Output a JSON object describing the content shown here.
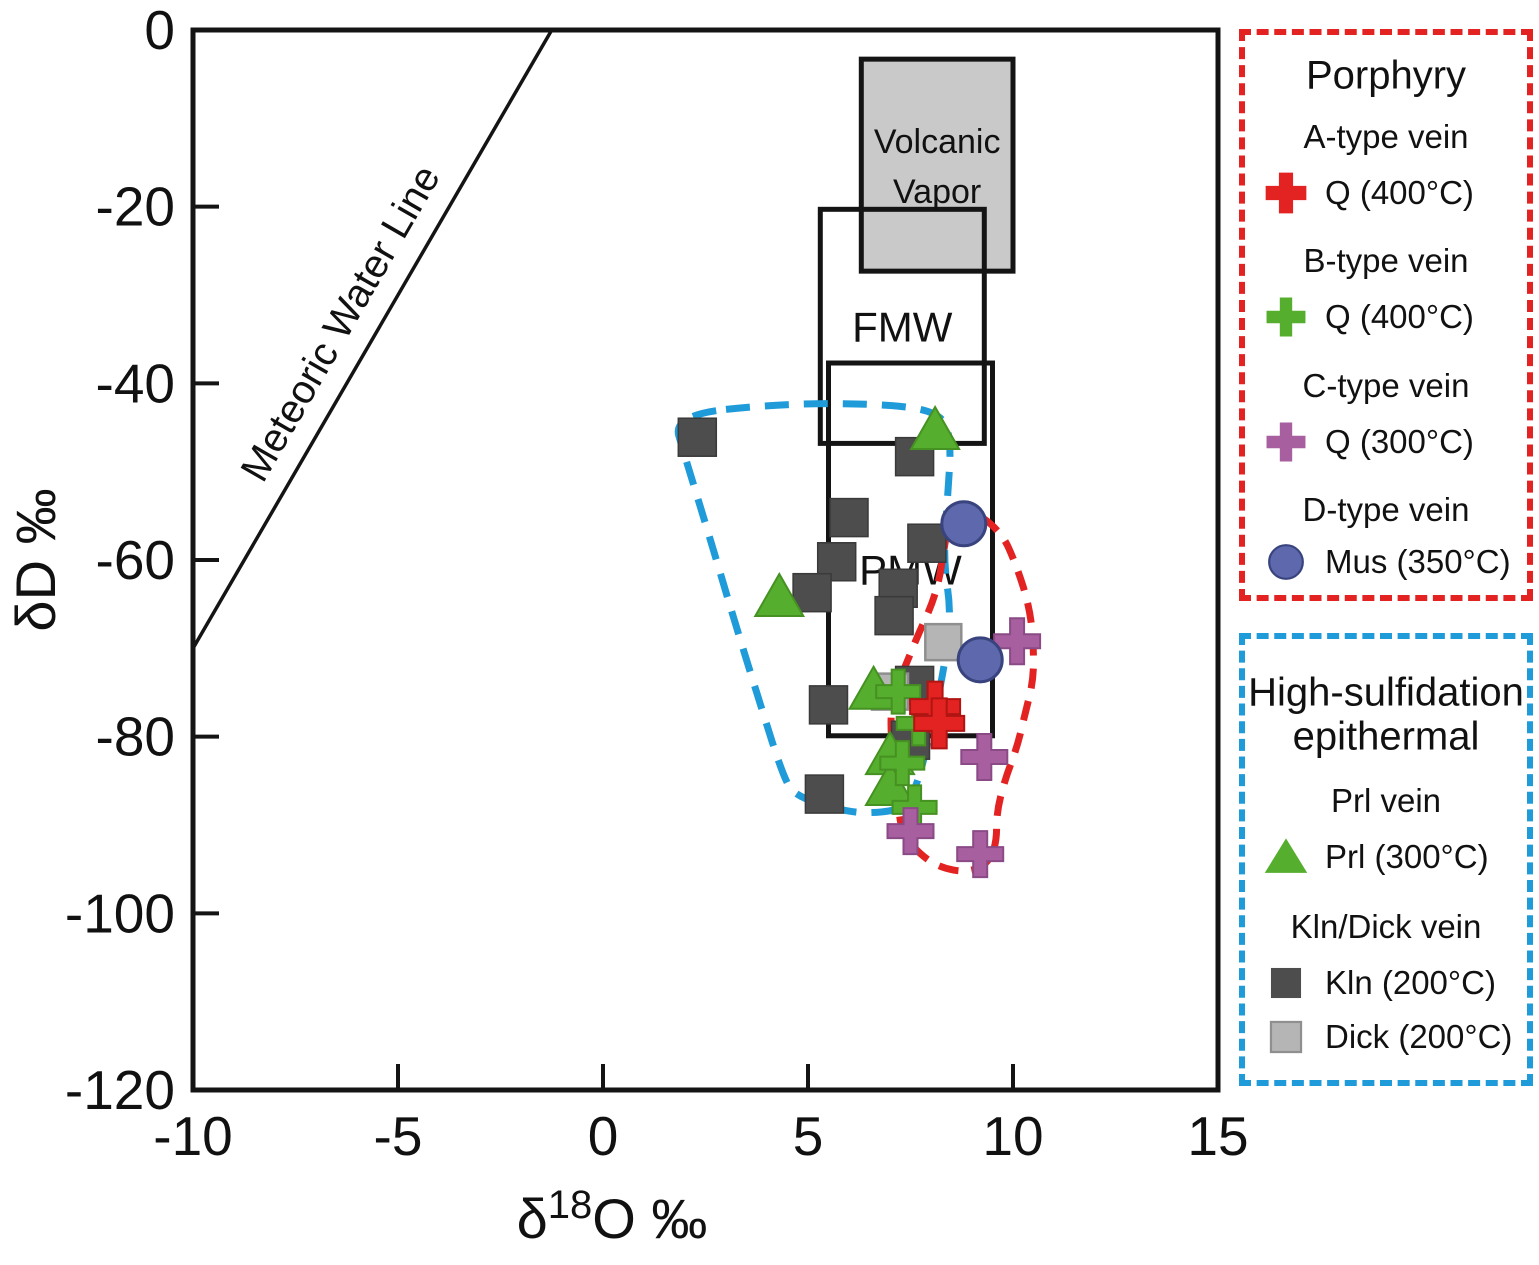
{
  "colors": {
    "red": "#e32322",
    "green": "#56ae2e",
    "purple": "#a75f9f",
    "blue": "#5e69ad",
    "blue_stroke": "#39447f",
    "kln": "#4d4d4d",
    "kln_stroke": "#3a3a3a",
    "dick": "#b5b5b5",
    "dick_stroke": "#8f8f8f",
    "green_stroke": "#459122",
    "red_stroke": "#b01512",
    "purple_stroke": "#8a4a85",
    "volcanic_fill": "#c9c9c9",
    "box_stroke": "#141414",
    "hs_field": "#1e9bd8",
    "porphyry_field": "#e32322",
    "axis": "#141414"
  },
  "axes": {
    "x_title_delta": "δ",
    "x_title_sup": "18",
    "x_title_rest": "O ‰",
    "y_title": "δD ‰",
    "x_ticks": [
      -10,
      -5,
      0,
      5,
      10,
      15
    ],
    "y_ticks": [
      0,
      -20,
      -40,
      -60,
      -80,
      -100,
      -120
    ]
  },
  "chart_data": {
    "type": "scatter",
    "xlabel": "δ18O ‰",
    "ylabel": "δD ‰",
    "xlim": [
      -10,
      15
    ],
    "ylim": [
      -120,
      0
    ],
    "x_ticks": [
      -10,
      -5,
      0,
      5,
      10,
      15
    ],
    "y_ticks": [
      0,
      -20,
      -40,
      -60,
      -80,
      -100,
      -120
    ],
    "grid": false,
    "meteoric_water_line": {
      "label": "Meteoric Water Line",
      "points": [
        [
          -10,
          -70
        ],
        [
          -1.25,
          0
        ]
      ]
    },
    "regions": [
      {
        "id": "volcanic_vapor",
        "label_line1": "Volcanic",
        "label_line2": "Vapor",
        "x": [
          6.3,
          10.0
        ],
        "y": [
          -3.3,
          -27.3
        ],
        "filled": true
      },
      {
        "id": "fmw",
        "label": "FMW",
        "x": [
          5.3,
          9.3
        ],
        "y": [
          -20.3,
          -46.8
        ],
        "filled": false
      },
      {
        "id": "pmw",
        "label": "PMW",
        "x": [
          5.5,
          9.5
        ],
        "y": [
          -37.7,
          -79.9
        ],
        "filled": false
      }
    ],
    "fields": [
      {
        "id": "high_sulfidation_field",
        "name": "High-sulfidation epithermal",
        "style": "dashed",
        "outline": [
          [
            1.7,
            -43.6
          ],
          [
            4.3,
            -42.3
          ],
          [
            6.8,
            -42.3
          ],
          [
            8.2,
            -43.2
          ],
          [
            8.5,
            -46.1
          ],
          [
            8.4,
            -53.2
          ],
          [
            8.3,
            -60.0
          ],
          [
            8.5,
            -66.2
          ],
          [
            8.3,
            -72.8
          ],
          [
            8.0,
            -79.2
          ],
          [
            7.7,
            -84.9
          ],
          [
            7.4,
            -88.0
          ],
          [
            6.8,
            -88.6
          ],
          [
            6.0,
            -88.6
          ],
          [
            4.7,
            -86.8
          ],
          [
            4.4,
            -84.6
          ],
          [
            3.8,
            -75.8
          ],
          [
            3.2,
            -66.8
          ],
          [
            2.6,
            -57.4
          ],
          [
            2.0,
            -48.3
          ]
        ]
      },
      {
        "id": "porphyry_field",
        "name": "Porphyry",
        "style": "dashed",
        "outline": [
          [
            8.8,
            -53.8
          ],
          [
            9.7,
            -56.6
          ],
          [
            10.1,
            -60.8
          ],
          [
            10.4,
            -65.3
          ],
          [
            10.5,
            -69.4
          ],
          [
            10.5,
            -73.6
          ],
          [
            10.3,
            -77.3
          ],
          [
            10.1,
            -81.2
          ],
          [
            9.8,
            -84.9
          ],
          [
            9.6,
            -88.6
          ],
          [
            9.6,
            -92.0
          ],
          [
            9.4,
            -94.3
          ],
          [
            8.9,
            -95.4
          ],
          [
            8.2,
            -94.8
          ],
          [
            7.7,
            -93.2
          ],
          [
            7.3,
            -90.9
          ],
          [
            7.2,
            -88.0
          ],
          [
            7.1,
            -84.1
          ],
          [
            7.0,
            -78.1
          ],
          [
            7.1,
            -75.1
          ],
          [
            7.4,
            -71.7
          ],
          [
            7.7,
            -68.3
          ],
          [
            8.0,
            -65.3
          ],
          [
            8.2,
            -62.3
          ],
          [
            8.3,
            -59.2
          ],
          [
            8.4,
            -56.6
          ]
        ]
      }
    ],
    "series": [
      {
        "id": "kln",
        "name": "Kln (200°C)",
        "marker": "square",
        "points": [
          [
            2.3,
            -46.1
          ],
          [
            7.6,
            -48.3
          ],
          [
            6.0,
            -55.2
          ],
          [
            7.9,
            -58.1
          ],
          [
            5.7,
            -60.2
          ],
          [
            5.1,
            -63.7
          ],
          [
            7.2,
            -63.2
          ],
          [
            7.1,
            -66.3
          ],
          [
            7.6,
            -74.2
          ],
          [
            5.5,
            -76.4
          ],
          [
            7.5,
            -80.4
          ],
          [
            5.4,
            -86.5
          ]
        ]
      },
      {
        "id": "dick",
        "name": "Dick (200°C)",
        "marker": "square",
        "points": [
          [
            8.3,
            -69.3
          ],
          [
            7.0,
            -74.9
          ]
        ]
      },
      {
        "id": "prl",
        "name": "Prl (300°C)",
        "marker": "triangle",
        "points": [
          [
            8.1,
            -45.3
          ],
          [
            4.3,
            -64.2
          ],
          [
            6.6,
            -74.7
          ],
          [
            7.0,
            -82.1
          ],
          [
            7.0,
            -85.6
          ]
        ]
      },
      {
        "id": "b_type",
        "name": "Q (400°C) B-type vein",
        "marker": "plus",
        "points": [
          [
            7.2,
            -74.9
          ],
          [
            7.7,
            -78.5
          ],
          [
            7.3,
            -83.0
          ],
          [
            7.6,
            -88.0
          ]
        ]
      },
      {
        "id": "a_type",
        "name": "Q (400°C) A-type vein",
        "marker": "plus",
        "points": [
          [
            8.1,
            -76.6
          ],
          [
            8.2,
            -78.5
          ]
        ]
      },
      {
        "id": "c_type",
        "name": "Q (300°C) C-type vein",
        "marker": "plus",
        "points": [
          [
            10.1,
            -69.2
          ],
          [
            9.3,
            -82.3
          ],
          [
            7.5,
            -90.7
          ],
          [
            9.2,
            -93.3
          ]
        ]
      },
      {
        "id": "d_type",
        "name": "Mus (350°C) D-type vein",
        "marker": "circle",
        "points": [
          [
            8.8,
            -55.9
          ],
          [
            9.2,
            -71.3
          ]
        ]
      }
    ]
  },
  "legend": {
    "porphyry": {
      "title": "Porphyry",
      "a_group_label": "A-type vein",
      "a_item": "Q (400°C)",
      "b_group_label": "B-type vein",
      "b_item": "Q (400°C)",
      "c_group_label": "C-type vein",
      "c_item": "Q (300°C)",
      "d_group_label": "D-type vein",
      "d_item": "Mus (350°C)"
    },
    "high_sulfidation": {
      "title_line1": "High-sulfidation",
      "title_line2": "epithermal",
      "prl_group_label": "Prl vein",
      "prl_item": "Prl (300°C)",
      "kln_dick_group_label": "Kln/Dick vein",
      "kln_item": "Kln (200°C)",
      "dick_item": "Dick (200°C)"
    }
  }
}
